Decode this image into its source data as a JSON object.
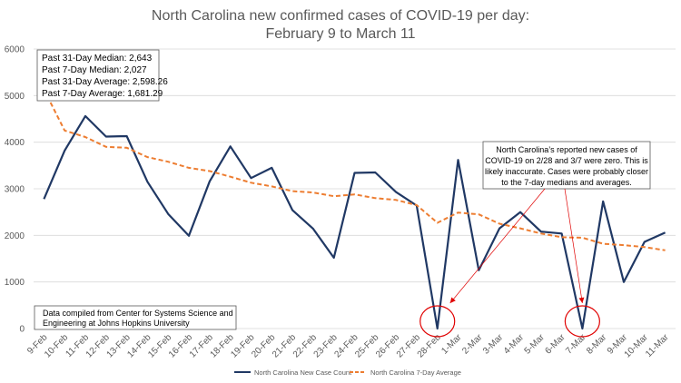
{
  "chart_data": {
    "type": "line",
    "title": [
      "North Carolina new confirmed cases of COVID-19 per day:",
      "February 9 to March 11"
    ],
    "categories": [
      "9-Feb",
      "10-Feb",
      "11-Feb",
      "12-Feb",
      "13-Feb",
      "14-Feb",
      "15-Feb",
      "16-Feb",
      "17-Feb",
      "18-Feb",
      "19-Feb",
      "20-Feb",
      "21-Feb",
      "22-Feb",
      "23-Feb",
      "24-Feb",
      "25-Feb",
      "26-Feb",
      "27-Feb",
      "28-Feb",
      "1-Mar",
      "2-Mar",
      "3-Mar",
      "4-Mar",
      "5-Mar",
      "6-Mar",
      "7-Mar",
      "8-Mar",
      "9-Mar",
      "10-Mar",
      "11-Mar"
    ],
    "ylim": [
      0,
      6000
    ],
    "yticks": [
      "0",
      "1000",
      "2000",
      "3000",
      "4000",
      "5000",
      "6000"
    ],
    "grid": true,
    "legend_position": "bottom",
    "series": [
      {
        "name": "North Carolina New Case Count",
        "color": "#203864",
        "style": "solid",
        "values": [
          2780,
          3820,
          4560,
          4120,
          4130,
          3150,
          2460,
          1990,
          3160,
          3910,
          3230,
          3450,
          2540,
          2140,
          1520,
          3340,
          3350,
          2930,
          2640,
          0,
          3620,
          1250,
          2150,
          2500,
          2080,
          2040,
          0,
          2730,
          1000,
          1860,
          2060
        ]
      },
      {
        "name": "North Carolina 7-Day Average",
        "color": "#ED7D31",
        "style": "dashed",
        "values": [
          5130,
          4250,
          4110,
          3900,
          3880,
          3680,
          3580,
          3450,
          3380,
          3260,
          3130,
          3050,
          2950,
          2920,
          2840,
          2880,
          2800,
          2760,
          2650,
          2270,
          2490,
          2450,
          2250,
          2150,
          2040,
          1960,
          1950,
          1820,
          1790,
          1750,
          1680
        ]
      }
    ],
    "stats_box": [
      "Past 31-Day Median: 2,643",
      "Past 7-Day Median: 2,027",
      "Past 31-Day Average: 2,598.26",
      "Past 7-Day Average: 1,681.29"
    ],
    "source_note": [
      "Data compiled from Center for Systems Science and",
      "Engineering at Johns Hopkins University"
    ],
    "annotation": [
      "North Carolina’s reported new cases of",
      "COVID-19 on 2/28 and 3/7 were zero. This is",
      "likely inaccurate. Cases were probably closer",
      "to the 7-day medians and averages."
    ],
    "highlight_points": [
      "28-Feb",
      "7-Mar"
    ],
    "colors": {
      "grid": "#D9D9D9",
      "highlight": "#E00000",
      "text": "#595959"
    }
  }
}
